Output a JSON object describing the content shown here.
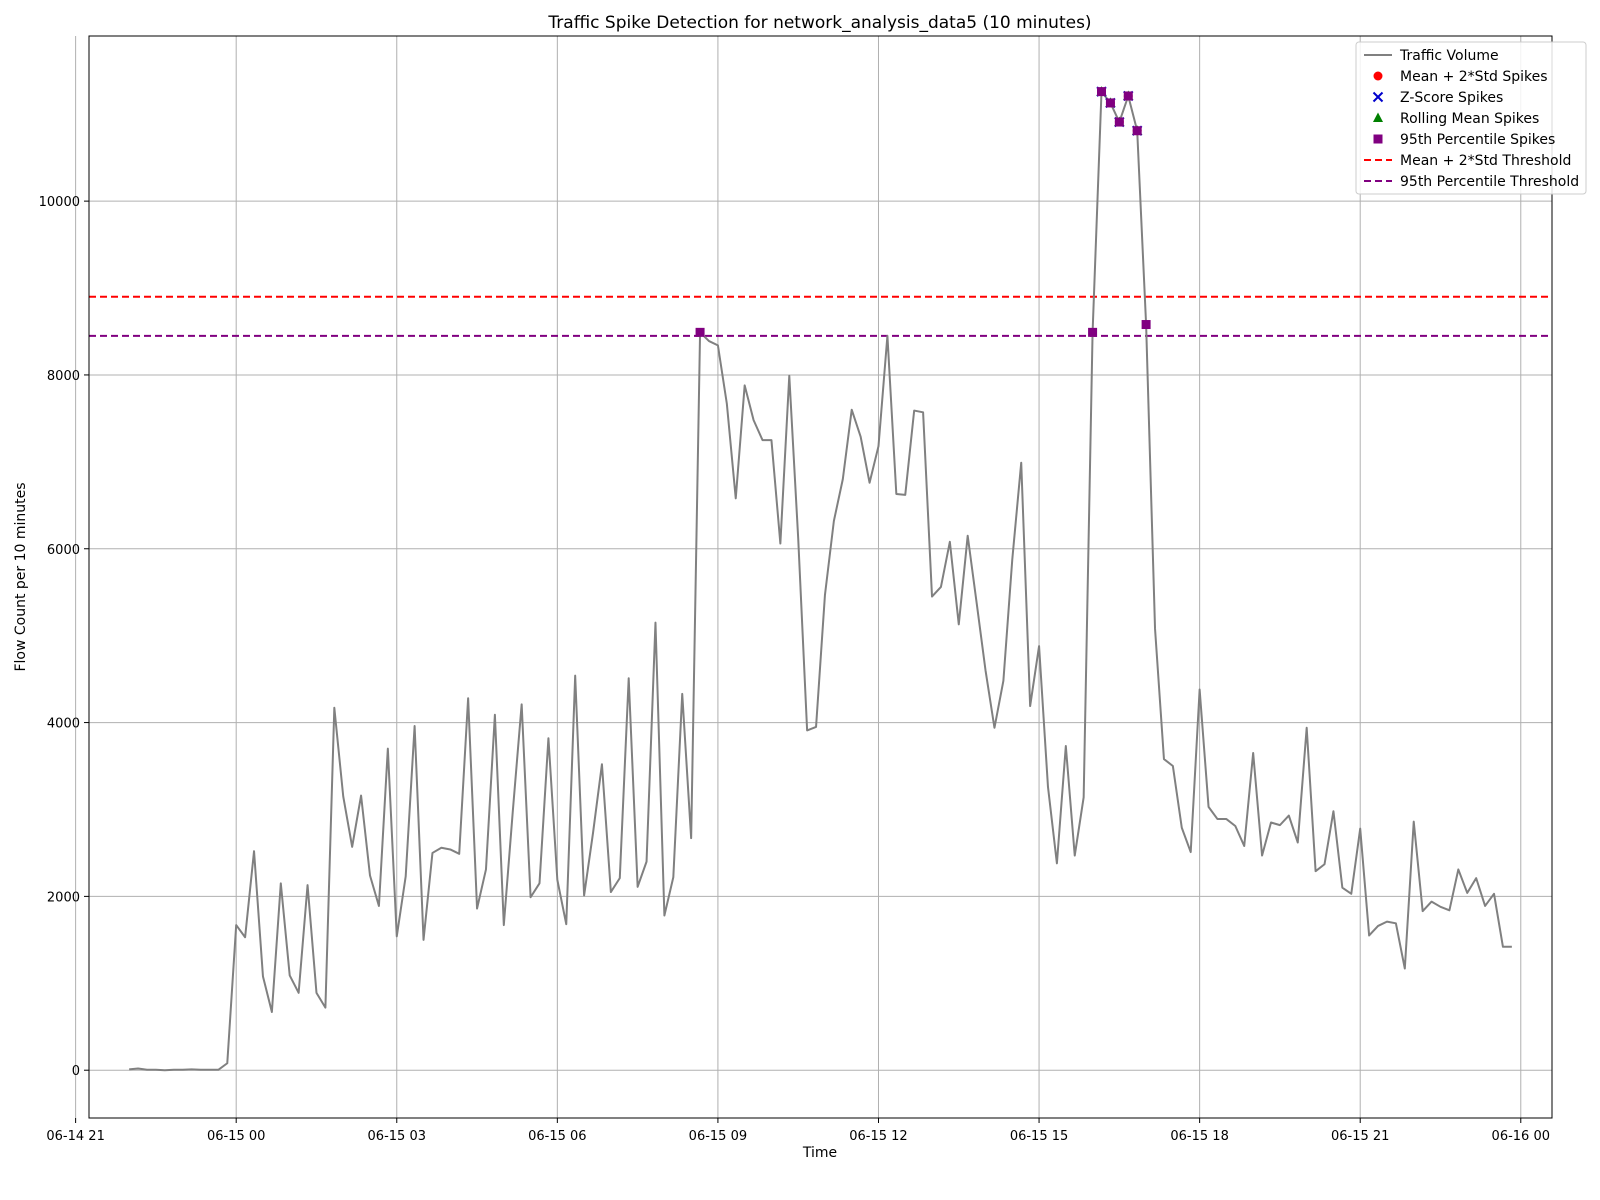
{
  "chart_data": {
    "type": "line",
    "title": "Traffic Spike Detection for network_analysis_data5 (10 minutes)",
    "xlabel": "Time",
    "ylabel": "Flow Count per 10 minutes",
    "xlim": [
      "2024-06-14T21:15",
      "2024-06-16T00:35"
    ],
    "ylim": [
      -550,
      11900
    ],
    "x_ticks": [
      {
        "t": "2024-06-14T21:00",
        "label": "06-14 21"
      },
      {
        "t": "2024-06-15T00:00",
        "label": "06-15 00"
      },
      {
        "t": "2024-06-15T03:00",
        "label": "06-15 03"
      },
      {
        "t": "2024-06-15T06:00",
        "label": "06-15 06"
      },
      {
        "t": "2024-06-15T09:00",
        "label": "06-15 09"
      },
      {
        "t": "2024-06-15T12:00",
        "label": "06-15 12"
      },
      {
        "t": "2024-06-15T15:00",
        "label": "06-15 15"
      },
      {
        "t": "2024-06-15T18:00",
        "label": "06-15 18"
      },
      {
        "t": "2024-06-15T21:00",
        "label": "06-15 21"
      },
      {
        "t": "2024-06-16T00:00",
        "label": "06-16 00"
      }
    ],
    "y_ticks": [
      {
        "v": 0,
        "label": "0"
      },
      {
        "v": 2000,
        "label": "2000"
      },
      {
        "v": 4000,
        "label": "4000"
      },
      {
        "v": 6000,
        "label": "6000"
      },
      {
        "v": 8000,
        "label": "8000"
      },
      {
        "v": 10000,
        "label": "10000"
      }
    ],
    "grid": true,
    "legend_position": "top-right",
    "colors": {
      "traffic": "#808080",
      "mean_std": "#ff0000",
      "zscore": "#0000cc",
      "rolling": "#008000",
      "percentile": "#800080",
      "grid": "#b0b0b0"
    },
    "series": [
      {
        "name": "Traffic Volume",
        "kind": "line",
        "x": [
          "2024-06-14T22:00",
          "2024-06-14T22:10",
          "2024-06-14T22:20",
          "2024-06-14T22:30",
          "2024-06-14T22:40",
          "2024-06-14T22:50",
          "2024-06-14T23:00",
          "2024-06-14T23:10",
          "2024-06-14T23:20",
          "2024-06-14T23:30",
          "2024-06-14T23:40",
          "2024-06-14T23:50",
          "2024-06-15T00:00",
          "2024-06-15T00:10",
          "2024-06-15T00:20",
          "2024-06-15T00:30",
          "2024-06-15T00:40",
          "2024-06-15T00:50",
          "2024-06-15T01:00",
          "2024-06-15T01:10",
          "2024-06-15T01:20",
          "2024-06-15T01:30",
          "2024-06-15T01:40",
          "2024-06-15T01:50",
          "2024-06-15T02:00",
          "2024-06-15T02:10",
          "2024-06-15T02:20",
          "2024-06-15T02:30",
          "2024-06-15T02:40",
          "2024-06-15T02:50",
          "2024-06-15T03:00",
          "2024-06-15T03:10",
          "2024-06-15T03:20",
          "2024-06-15T03:30",
          "2024-06-15T03:40",
          "2024-06-15T03:50",
          "2024-06-15T04:00",
          "2024-06-15T04:10",
          "2024-06-15T04:20",
          "2024-06-15T04:30",
          "2024-06-15T04:40",
          "2024-06-15T04:50",
          "2024-06-15T05:00",
          "2024-06-15T05:10",
          "2024-06-15T05:20",
          "2024-06-15T05:30",
          "2024-06-15T05:40",
          "2024-06-15T05:50",
          "2024-06-15T06:00",
          "2024-06-15T06:10",
          "2024-06-15T06:20",
          "2024-06-15T06:30",
          "2024-06-15T06:40",
          "2024-06-15T06:50",
          "2024-06-15T07:00",
          "2024-06-15T07:10",
          "2024-06-15T07:20",
          "2024-06-15T07:30",
          "2024-06-15T07:40",
          "2024-06-15T07:50",
          "2024-06-15T08:00",
          "2024-06-15T08:10",
          "2024-06-15T08:20",
          "2024-06-15T08:30",
          "2024-06-15T08:40",
          "2024-06-15T08:50",
          "2024-06-15T09:00",
          "2024-06-15T09:10",
          "2024-06-15T09:20",
          "2024-06-15T09:30",
          "2024-06-15T09:40",
          "2024-06-15T09:50",
          "2024-06-15T10:00",
          "2024-06-15T10:10",
          "2024-06-15T10:20",
          "2024-06-15T10:30",
          "2024-06-15T10:40",
          "2024-06-15T10:50",
          "2024-06-15T11:00",
          "2024-06-15T11:10",
          "2024-06-15T11:20",
          "2024-06-15T11:30",
          "2024-06-15T11:40",
          "2024-06-15T11:50",
          "2024-06-15T12:00",
          "2024-06-15T12:10",
          "2024-06-15T12:20",
          "2024-06-15T12:30",
          "2024-06-15T12:40",
          "2024-06-15T12:50",
          "2024-06-15T13:00",
          "2024-06-15T13:10",
          "2024-06-15T13:20",
          "2024-06-15T13:30",
          "2024-06-15T13:40",
          "2024-06-15T13:50",
          "2024-06-15T14:00",
          "2024-06-15T14:10",
          "2024-06-15T14:20",
          "2024-06-15T14:30",
          "2024-06-15T14:40",
          "2024-06-15T14:50",
          "2024-06-15T15:00",
          "2024-06-15T15:10",
          "2024-06-15T15:20",
          "2024-06-15T15:30",
          "2024-06-15T15:40",
          "2024-06-15T15:50",
          "2024-06-15T16:00",
          "2024-06-15T16:10",
          "2024-06-15T16:20",
          "2024-06-15T16:30",
          "2024-06-15T16:40",
          "2024-06-15T16:50",
          "2024-06-15T17:00",
          "2024-06-15T17:10",
          "2024-06-15T17:20",
          "2024-06-15T17:30",
          "2024-06-15T17:40",
          "2024-06-15T17:50",
          "2024-06-15T18:00",
          "2024-06-15T18:10",
          "2024-06-15T18:20",
          "2024-06-15T18:30",
          "2024-06-15T18:40",
          "2024-06-15T18:50",
          "2024-06-15T19:00",
          "2024-06-15T19:10",
          "2024-06-15T19:20",
          "2024-06-15T19:30",
          "2024-06-15T19:40",
          "2024-06-15T19:50",
          "2024-06-15T20:00",
          "2024-06-15T20:10",
          "2024-06-15T20:20",
          "2024-06-15T20:30",
          "2024-06-15T20:40",
          "2024-06-15T20:50",
          "2024-06-15T21:00",
          "2024-06-15T21:10",
          "2024-06-15T21:20",
          "2024-06-15T21:30",
          "2024-06-15T21:40",
          "2024-06-15T21:50",
          "2024-06-15T22:00",
          "2024-06-15T22:10",
          "2024-06-15T22:20",
          "2024-06-15T22:30",
          "2024-06-15T22:40",
          "2024-06-15T22:50",
          "2024-06-15T23:00",
          "2024-06-15T23:10",
          "2024-06-15T23:20",
          "2024-06-15T23:30",
          "2024-06-15T23:40",
          "2024-06-15T23:50"
        ],
        "values": [
          10,
          20,
          5,
          5,
          0,
          5,
          5,
          10,
          5,
          5,
          5,
          80,
          1670,
          1530,
          2520,
          1080,
          670,
          2150,
          1090,
          890,
          2130,
          890,
          720,
          4170,
          3150,
          2570,
          3160,
          2240,
          1890,
          3700,
          1540,
          2230,
          3960,
          1500,
          2500,
          2560,
          2540,
          2490,
          4280,
          1860,
          2310,
          4090,
          1670,
          2970,
          4210,
          1990,
          2150,
          3820,
          2190,
          1680,
          4540,
          2010,
          2730,
          3520,
          2050,
          2210,
          4510,
          2110,
          2400,
          5150,
          1780,
          2220,
          4330,
          2670,
          8490,
          8390,
          8340,
          7670,
          6580,
          7880,
          7480,
          7250,
          7250,
          6060,
          7990,
          6120,
          3910,
          3950,
          5470,
          6320,
          6800,
          7600,
          7290,
          6760,
          7180,
          8450,
          6630,
          6620,
          7590,
          7570,
          5450,
          5560,
          6080,
          5130,
          6150,
          5380,
          4600,
          3940,
          4480,
          5880,
          6990,
          4190,
          4880,
          3260,
          2380,
          3730,
          2470,
          3140,
          8490,
          11260,
          11130,
          10910,
          11210,
          10810,
          8580,
          5080,
          3580,
          3500,
          2790,
          2510,
          4380,
          3030,
          2890,
          2890,
          2810,
          2580,
          3650,
          2470,
          2850,
          2820,
          2930,
          2620,
          3940,
          2290,
          2370,
          2980,
          2100,
          2030,
          2780,
          1550,
          1660,
          1710,
          1690,
          1170,
          2860,
          1830,
          1940,
          1880,
          1840,
          2310,
          2040,
          2210,
          1890,
          2030,
          1420,
          1420
        ]
      },
      {
        "name": "Mean + 2*Std Spikes",
        "kind": "scatter",
        "marker": "circle",
        "x": [
          "2024-06-15T16:10",
          "2024-06-15T16:20",
          "2024-06-15T16:30",
          "2024-06-15T16:40",
          "2024-06-15T16:50"
        ],
        "values": [
          11260,
          11130,
          10910,
          11210,
          10810
        ]
      },
      {
        "name": "Z-Score Spikes",
        "kind": "scatter",
        "marker": "x",
        "x": [
          "2024-06-15T16:10",
          "2024-06-15T16:20",
          "2024-06-15T16:30",
          "2024-06-15T16:40",
          "2024-06-15T16:50"
        ],
        "values": [
          11260,
          11130,
          10910,
          11210,
          10810
        ]
      },
      {
        "name": "Rolling Mean Spikes",
        "kind": "scatter",
        "marker": "triangle",
        "x": [
          "2024-06-15T16:10",
          "2024-06-15T16:20",
          "2024-06-15T16:30",
          "2024-06-15T16:40",
          "2024-06-15T16:50"
        ],
        "values": [
          11260,
          11130,
          10910,
          11210,
          10810
        ]
      },
      {
        "name": "95th Percentile Spikes",
        "kind": "scatter",
        "marker": "square",
        "x": [
          "2024-06-15T08:40",
          "2024-06-15T16:00",
          "2024-06-15T16:10",
          "2024-06-15T16:20",
          "2024-06-15T16:30",
          "2024-06-15T16:40",
          "2024-06-15T16:50",
          "2024-06-15T17:00"
        ],
        "values": [
          8490,
          8490,
          11260,
          11130,
          10910,
          11210,
          10810,
          8580
        ]
      }
    ],
    "thresholds": [
      {
        "name": "Mean + 2*Std Threshold",
        "value": 8900
      },
      {
        "name": "95th Percentile Threshold",
        "value": 8450
      }
    ],
    "legend": [
      {
        "label": "Traffic Volume",
        "symbol": "line",
        "color_key": "traffic"
      },
      {
        "label": "Mean + 2*Std Spikes",
        "symbol": "circle",
        "color_key": "mean_std"
      },
      {
        "label": "Z-Score Spikes",
        "symbol": "x",
        "color_key": "zscore"
      },
      {
        "label": "Rolling Mean Spikes",
        "symbol": "triangle",
        "color_key": "rolling"
      },
      {
        "label": "95th Percentile Spikes",
        "symbol": "square",
        "color_key": "percentile"
      },
      {
        "label": "Mean + 2*Std Threshold",
        "symbol": "dashed",
        "color_key": "mean_std"
      },
      {
        "label": "95th Percentile Threshold",
        "symbol": "dashed",
        "color_key": "percentile"
      }
    ]
  }
}
